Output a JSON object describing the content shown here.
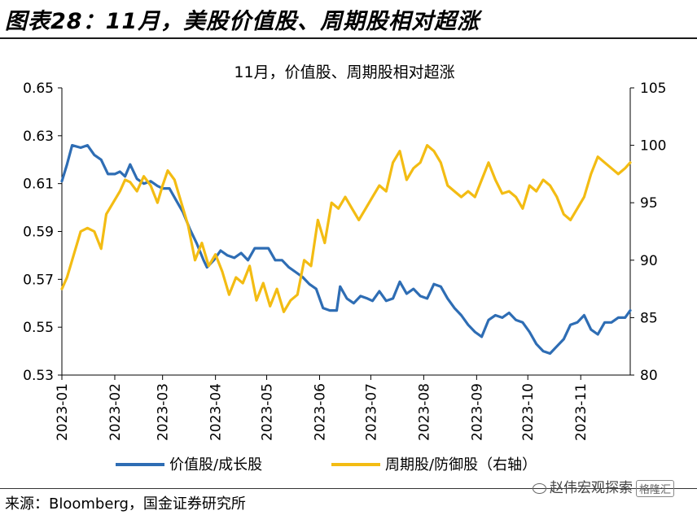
{
  "figure_title": "图表28：11月，美股价值股、周期股相对超涨",
  "source": "来源：Bloomberg，国金证券研究所",
  "watermark": "赵伟宏观探索",
  "watermark_logo": "格隆汇",
  "colors": {
    "series1": "#2e6db4",
    "series2": "#f3bc13",
    "axis": "#000000"
  },
  "chart_data": {
    "type": "line",
    "title": "11月，价值股、周期股相对超涨",
    "x_ticks": [
      "2023-01",
      "2023-02",
      "2023-03",
      "2023-04",
      "2023-05",
      "2023-06",
      "2023-07",
      "2023-08",
      "2023-09",
      "2023-10",
      "2023-11"
    ],
    "x_range": [
      "2023-01-01",
      "2023-11-30"
    ],
    "y_left": {
      "min": 0.53,
      "max": 0.65,
      "ticks": [
        "0.65",
        "0.63",
        "0.61",
        "0.59",
        "0.57",
        "0.55",
        "0.53"
      ]
    },
    "y_right": {
      "min": 80,
      "max": 105,
      "ticks": [
        "105",
        "100",
        "95",
        "90",
        "85",
        "80"
      ]
    },
    "legend_position": "bottom",
    "series": [
      {
        "name": "价值股/成长股",
        "axis": "left",
        "points": [
          [
            "2023-01-01",
            0.611
          ],
          [
            "2023-01-04",
            0.618
          ],
          [
            "2023-01-07",
            0.626
          ],
          [
            "2023-01-12",
            0.625
          ],
          [
            "2023-01-16",
            0.626
          ],
          [
            "2023-01-20",
            0.622
          ],
          [
            "2023-01-24",
            0.62
          ],
          [
            "2023-01-28",
            0.614
          ],
          [
            "2023-02-01",
            0.614
          ],
          [
            "2023-02-04",
            0.615
          ],
          [
            "2023-02-07",
            0.613
          ],
          [
            "2023-02-10",
            0.618
          ],
          [
            "2023-02-14",
            0.612
          ],
          [
            "2023-02-18",
            0.61
          ],
          [
            "2023-02-22",
            0.611
          ],
          [
            "2023-02-26",
            0.609
          ],
          [
            "2023-03-01",
            0.608
          ],
          [
            "2023-03-05",
            0.608
          ],
          [
            "2023-03-09",
            0.603
          ],
          [
            "2023-03-13",
            0.598
          ],
          [
            "2023-03-17",
            0.591
          ],
          [
            "2023-03-21",
            0.585
          ],
          [
            "2023-03-25",
            0.578
          ],
          [
            "2023-03-27",
            0.575
          ],
          [
            "2023-03-31",
            0.578
          ],
          [
            "2023-04-04",
            0.582
          ],
          [
            "2023-04-08",
            0.58
          ],
          [
            "2023-04-12",
            0.579
          ],
          [
            "2023-04-16",
            0.581
          ],
          [
            "2023-04-20",
            0.578
          ],
          [
            "2023-04-24",
            0.583
          ],
          [
            "2023-04-28",
            0.583
          ],
          [
            "2023-05-02",
            0.583
          ],
          [
            "2023-05-06",
            0.578
          ],
          [
            "2023-05-10",
            0.578
          ],
          [
            "2023-05-14",
            0.575
          ],
          [
            "2023-05-18",
            0.573
          ],
          [
            "2023-05-22",
            0.571
          ],
          [
            "2023-05-26",
            0.568
          ],
          [
            "2023-05-30",
            0.566
          ],
          [
            "2023-06-03",
            0.558
          ],
          [
            "2023-06-07",
            0.557
          ],
          [
            "2023-06-11",
            0.557
          ],
          [
            "2023-06-13",
            0.567
          ],
          [
            "2023-06-17",
            0.562
          ],
          [
            "2023-06-21",
            0.56
          ],
          [
            "2023-06-25",
            0.563
          ],
          [
            "2023-06-29",
            0.562
          ],
          [
            "2023-07-02",
            0.561
          ],
          [
            "2023-07-06",
            0.565
          ],
          [
            "2023-07-10",
            0.561
          ],
          [
            "2023-07-14",
            0.562
          ],
          [
            "2023-07-18",
            0.569
          ],
          [
            "2023-07-22",
            0.564
          ],
          [
            "2023-07-26",
            0.566
          ],
          [
            "2023-07-30",
            0.563
          ],
          [
            "2023-08-03",
            0.562
          ],
          [
            "2023-08-07",
            0.568
          ],
          [
            "2023-08-11",
            0.567
          ],
          [
            "2023-08-15",
            0.562
          ],
          [
            "2023-08-19",
            0.558
          ],
          [
            "2023-08-23",
            0.555
          ],
          [
            "2023-08-27",
            0.551
          ],
          [
            "2023-08-31",
            0.548
          ],
          [
            "2023-09-04",
            0.546
          ],
          [
            "2023-09-08",
            0.553
          ],
          [
            "2023-09-12",
            0.555
          ],
          [
            "2023-09-16",
            0.554
          ],
          [
            "2023-09-20",
            0.556
          ],
          [
            "2023-09-24",
            0.553
          ],
          [
            "2023-09-28",
            0.552
          ],
          [
            "2023-10-02",
            0.548
          ],
          [
            "2023-10-06",
            0.543
          ],
          [
            "2023-10-10",
            0.54
          ],
          [
            "2023-10-14",
            0.539
          ],
          [
            "2023-10-18",
            0.542
          ],
          [
            "2023-10-22",
            0.545
          ],
          [
            "2023-10-26",
            0.551
          ],
          [
            "2023-10-30",
            0.552
          ],
          [
            "2023-11-03",
            0.555
          ],
          [
            "2023-11-07",
            0.549
          ],
          [
            "2023-11-11",
            0.547
          ],
          [
            "2023-11-15",
            0.552
          ],
          [
            "2023-11-19",
            0.552
          ],
          [
            "2023-11-23",
            0.554
          ],
          [
            "2023-11-27",
            0.554
          ],
          [
            "2023-11-30",
            0.557
          ]
        ]
      },
      {
        "name": "周期股/防御股（右轴）",
        "axis": "right",
        "points": [
          [
            "2023-01-01",
            87.5
          ],
          [
            "2023-01-04",
            88.5
          ],
          [
            "2023-01-08",
            90.5
          ],
          [
            "2023-01-12",
            92.5
          ],
          [
            "2023-01-16",
            92.8
          ],
          [
            "2023-01-20",
            92.5
          ],
          [
            "2023-01-24",
            91.0
          ],
          [
            "2023-01-27",
            94.0
          ],
          [
            "2023-01-31",
            95.0
          ],
          [
            "2023-02-04",
            96.0
          ],
          [
            "2023-02-07",
            97.0
          ],
          [
            "2023-02-10",
            96.8
          ],
          [
            "2023-02-14",
            96.0
          ],
          [
            "2023-02-18",
            97.3
          ],
          [
            "2023-02-22",
            96.5
          ],
          [
            "2023-02-26",
            95.0
          ],
          [
            "2023-03-01",
            96.5
          ],
          [
            "2023-03-04",
            97.8
          ],
          [
            "2023-03-08",
            97.0
          ],
          [
            "2023-03-12",
            95.0
          ],
          [
            "2023-03-16",
            93.0
          ],
          [
            "2023-03-20",
            90.0
          ],
          [
            "2023-03-24",
            91.5
          ],
          [
            "2023-03-28",
            89.5
          ],
          [
            "2023-04-01",
            90.5
          ],
          [
            "2023-04-05",
            89.0
          ],
          [
            "2023-04-09",
            87.0
          ],
          [
            "2023-04-13",
            88.5
          ],
          [
            "2023-04-17",
            88.0
          ],
          [
            "2023-04-21",
            89.5
          ],
          [
            "2023-04-25",
            86.5
          ],
          [
            "2023-04-29",
            88.0
          ],
          [
            "2023-05-03",
            86.0
          ],
          [
            "2023-05-07",
            87.5
          ],
          [
            "2023-05-11",
            85.5
          ],
          [
            "2023-05-15",
            86.5
          ],
          [
            "2023-05-19",
            87.0
          ],
          [
            "2023-05-23",
            90.0
          ],
          [
            "2023-05-27",
            89.5
          ],
          [
            "2023-05-31",
            93.5
          ],
          [
            "2023-06-04",
            91.5
          ],
          [
            "2023-06-08",
            95.0
          ],
          [
            "2023-06-12",
            94.5
          ],
          [
            "2023-06-16",
            95.5
          ],
          [
            "2023-06-20",
            94.5
          ],
          [
            "2023-06-24",
            93.5
          ],
          [
            "2023-06-28",
            94.5
          ],
          [
            "2023-07-02",
            95.5
          ],
          [
            "2023-07-06",
            96.5
          ],
          [
            "2023-07-10",
            96.0
          ],
          [
            "2023-07-14",
            98.5
          ],
          [
            "2023-07-18",
            99.5
          ],
          [
            "2023-07-22",
            97.0
          ],
          [
            "2023-07-26",
            98.0
          ],
          [
            "2023-07-30",
            98.5
          ],
          [
            "2023-08-03",
            100.0
          ],
          [
            "2023-08-07",
            99.5
          ],
          [
            "2023-08-11",
            98.5
          ],
          [
            "2023-08-15",
            96.5
          ],
          [
            "2023-08-19",
            96.0
          ],
          [
            "2023-08-23",
            95.5
          ],
          [
            "2023-08-27",
            96.0
          ],
          [
            "2023-08-31",
            95.5
          ],
          [
            "2023-09-04",
            97.0
          ],
          [
            "2023-09-08",
            98.5
          ],
          [
            "2023-09-12",
            97.0
          ],
          [
            "2023-09-16",
            95.8
          ],
          [
            "2023-09-20",
            96.0
          ],
          [
            "2023-09-24",
            95.5
          ],
          [
            "2023-09-28",
            94.5
          ],
          [
            "2023-10-02",
            96.5
          ],
          [
            "2023-10-06",
            96.0
          ],
          [
            "2023-10-10",
            97.0
          ],
          [
            "2023-10-14",
            96.5
          ],
          [
            "2023-10-18",
            95.5
          ],
          [
            "2023-10-22",
            94.0
          ],
          [
            "2023-10-26",
            93.5
          ],
          [
            "2023-10-30",
            94.5
          ],
          [
            "2023-11-03",
            95.5
          ],
          [
            "2023-11-07",
            97.5
          ],
          [
            "2023-11-11",
            99.0
          ],
          [
            "2023-11-15",
            98.5
          ],
          [
            "2023-11-19",
            98.0
          ],
          [
            "2023-11-23",
            97.5
          ],
          [
            "2023-11-27",
            98.0
          ],
          [
            "2023-11-30",
            98.5
          ]
        ]
      }
    ]
  }
}
